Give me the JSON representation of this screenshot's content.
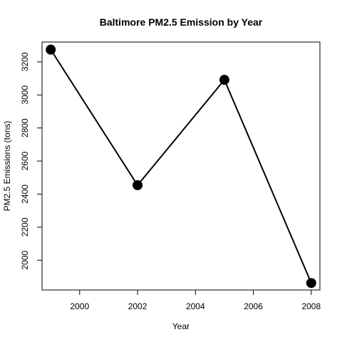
{
  "chart_data": {
    "type": "line",
    "title": "Baltimore PM2.5 Emission by Year",
    "xlabel": "Year",
    "ylabel": "PM2.5 Emissions (tons)",
    "x": [
      1999,
      2002,
      2005,
      2008
    ],
    "series": [
      {
        "values": [
          3274.18,
          2453.92,
          3091.35,
          1862.28
        ]
      }
    ],
    "xlim": [
      1998.7,
      2008.3
    ],
    "ylim": [
      1820,
      3320
    ],
    "xticks": [
      "2000",
      "2002",
      "2004",
      "2006",
      "2008"
    ],
    "yticks": [
      "2000",
      "2200",
      "2400",
      "2600",
      "2800",
      "3000",
      "3200"
    ],
    "grid": false,
    "legend": "none",
    "line_color": "#000000",
    "marker_color": "#000000"
  }
}
